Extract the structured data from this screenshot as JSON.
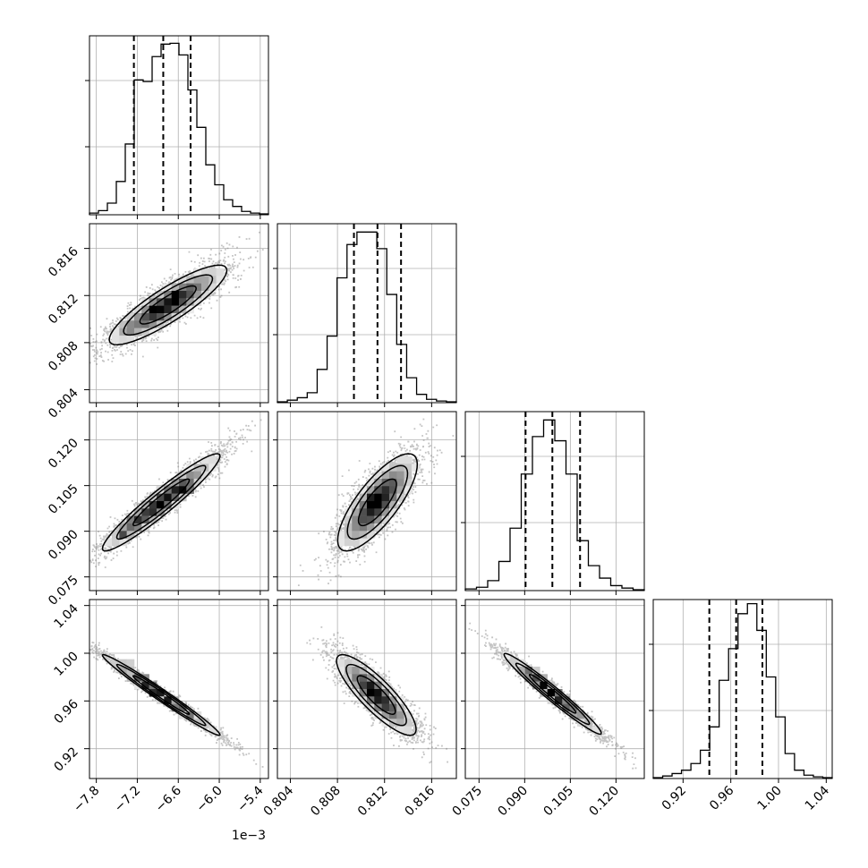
{
  "chart_data": {
    "type": "corner",
    "style": {
      "grid": true,
      "line_color": "#000000",
      "scatter_color": "#808080",
      "histogram": "step",
      "quantile_lines": "dashed"
    },
    "parameters": [
      {
        "id": "p0",
        "range": [
          -7.9,
          -5.28
        ],
        "ticks": [
          -7.8,
          -7.2,
          -6.6,
          -6.0,
          -5.4
        ],
        "tick_labels": [
          "−7.8",
          "−7.2",
          "−6.6",
          "−6.0",
          "−5.4"
        ],
        "offset_label": "1e−3"
      },
      {
        "id": "p1",
        "range": [
          0.8029,
          0.8181
        ],
        "ticks": [
          0.804,
          0.808,
          0.812,
          0.816
        ],
        "tick_labels": [
          "0.804",
          "0.808",
          "0.812",
          "0.816"
        ]
      },
      {
        "id": "p2",
        "range": [
          0.0705,
          0.1293
        ],
        "ticks": [
          0.075,
          0.09,
          0.105,
          0.12
        ],
        "tick_labels": [
          "0.075",
          "0.090",
          "0.105",
          "0.120"
        ]
      },
      {
        "id": "p3",
        "range": [
          0.895,
          1.045
        ],
        "ticks": [
          0.92,
          0.96,
          1.0,
          1.04
        ],
        "tick_labels": [
          "0.92",
          "0.96",
          "1.00",
          "1.04"
        ]
      }
    ],
    "marginals": [
      {
        "param": 0,
        "quantiles": [
          -7.25,
          -6.82,
          -6.42
        ],
        "counts": [
          2,
          5,
          14,
          40,
          85,
          162,
          160,
          190,
          205,
          206,
          192,
          150,
          105,
          60,
          36,
          18,
          10,
          4,
          2,
          1
        ]
      },
      {
        "param": 1,
        "quantiles": [
          0.8094,
          0.8114,
          0.8134
        ],
        "counts": [
          1,
          3,
          6,
          12,
          40,
          80,
          150,
          190,
          205,
          205,
          185,
          130,
          70,
          30,
          10,
          4,
          2,
          1
        ]
      },
      {
        "param": 2,
        "quantiles": [
          0.0903,
          0.0991,
          0.1082
        ],
        "counts": [
          2,
          4,
          12,
          35,
          75,
          140,
          185,
          205,
          180,
          140,
          60,
          30,
          15,
          6,
          3,
          1
        ]
      },
      {
        "param": 3,
        "quantiles": [
          0.942,
          0.9645,
          0.9865
        ],
        "counts": [
          1,
          3,
          6,
          10,
          18,
          34,
          62,
          118,
          156,
          198,
          210,
          178,
          122,
          74,
          30,
          10,
          4,
          2,
          1
        ]
      }
    ],
    "pairs": [
      {
        "x": 0,
        "y": 1,
        "mean": [
          -6.75,
          0.8112
        ],
        "sd": [
          0.42,
          0.00165
        ],
        "rho": 0.87,
        "peaks": [
          [
            -7.35,
            0.8092
          ],
          [
            -6.95,
            0.811
          ],
          [
            -6.65,
            0.8118
          ]
        ]
      },
      {
        "x": 0,
        "y": 2,
        "mean": [
          -6.85,
          0.0995
        ],
        "sd": [
          0.42,
          0.0078
        ],
        "rho": 0.95,
        "peaks": [
          [
            -7.4,
            0.0895
          ],
          [
            -7.25,
            0.093
          ],
          [
            -6.85,
            0.0985
          ],
          [
            -6.55,
            0.103
          ],
          [
            -6.4,
            0.104
          ]
        ]
      },
      {
        "x": 1,
        "y": 2,
        "mean": [
          0.8114,
          0.0995
        ],
        "sd": [
          0.00165,
          0.0078
        ],
        "rho": 0.78,
        "peaks": [
          [
            0.8109,
            0.099
          ],
          [
            0.8111,
            0.1003
          ],
          [
            0.8114,
            0.099
          ]
        ]
      },
      {
        "x": 0,
        "y": 3,
        "mean": [
          -6.85,
          0.965
        ],
        "sd": [
          0.42,
          0.0165
        ],
        "rho": -0.985,
        "peaks": [
          [
            -7.35,
            0.9925
          ],
          [
            -7.1,
            0.978
          ],
          [
            -6.95,
            0.969
          ]
        ]
      },
      {
        "x": 1,
        "y": 3,
        "mean": [
          0.8113,
          0.965
        ],
        "sd": [
          0.00165,
          0.0165
        ],
        "rho": -0.85,
        "peaks": [
          [
            0.8109,
            0.9685
          ]
        ]
      },
      {
        "x": 2,
        "y": 3,
        "mean": [
          0.0992,
          0.966
        ],
        "sd": [
          0.0078,
          0.0165
        ],
        "rho": -0.975,
        "peaks": [
          [
            0.0925,
            0.985
          ],
          [
            0.0955,
            0.977
          ],
          [
            0.0998,
            0.968
          ]
        ]
      }
    ]
  }
}
